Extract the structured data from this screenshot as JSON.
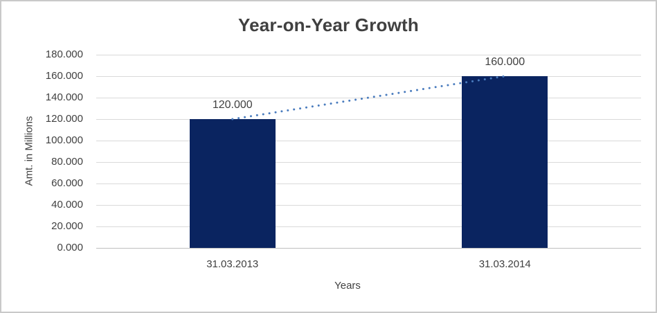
{
  "chart_data": {
    "type": "bar",
    "title": "Year-on-Year Growth",
    "xlabel": "Years",
    "ylabel": "Amt. in Millions",
    "categories": [
      "31.03.2013",
      "31.03.2014"
    ],
    "values": [
      120,
      160
    ],
    "data_labels": [
      "120.000",
      "160.000"
    ],
    "ylim": [
      0,
      180
    ],
    "ytick_step": 20,
    "ytick_labels": [
      "0.000",
      "20.000",
      "40.000",
      "60.000",
      "80.000",
      "100.000",
      "120.000",
      "140.000",
      "160.000",
      "180.000"
    ],
    "grid": "horizontal",
    "legend": "none",
    "trendline": {
      "style": "dotted",
      "connects": [
        120,
        160
      ]
    },
    "colors": {
      "bar": "#0a2460",
      "trendline": "#4a7cbe",
      "gridline": "#d9d9d9",
      "axis_line": "#bfbfbf",
      "text": "#404040",
      "border": "#c9c9c9",
      "background": "#ffffff"
    }
  }
}
